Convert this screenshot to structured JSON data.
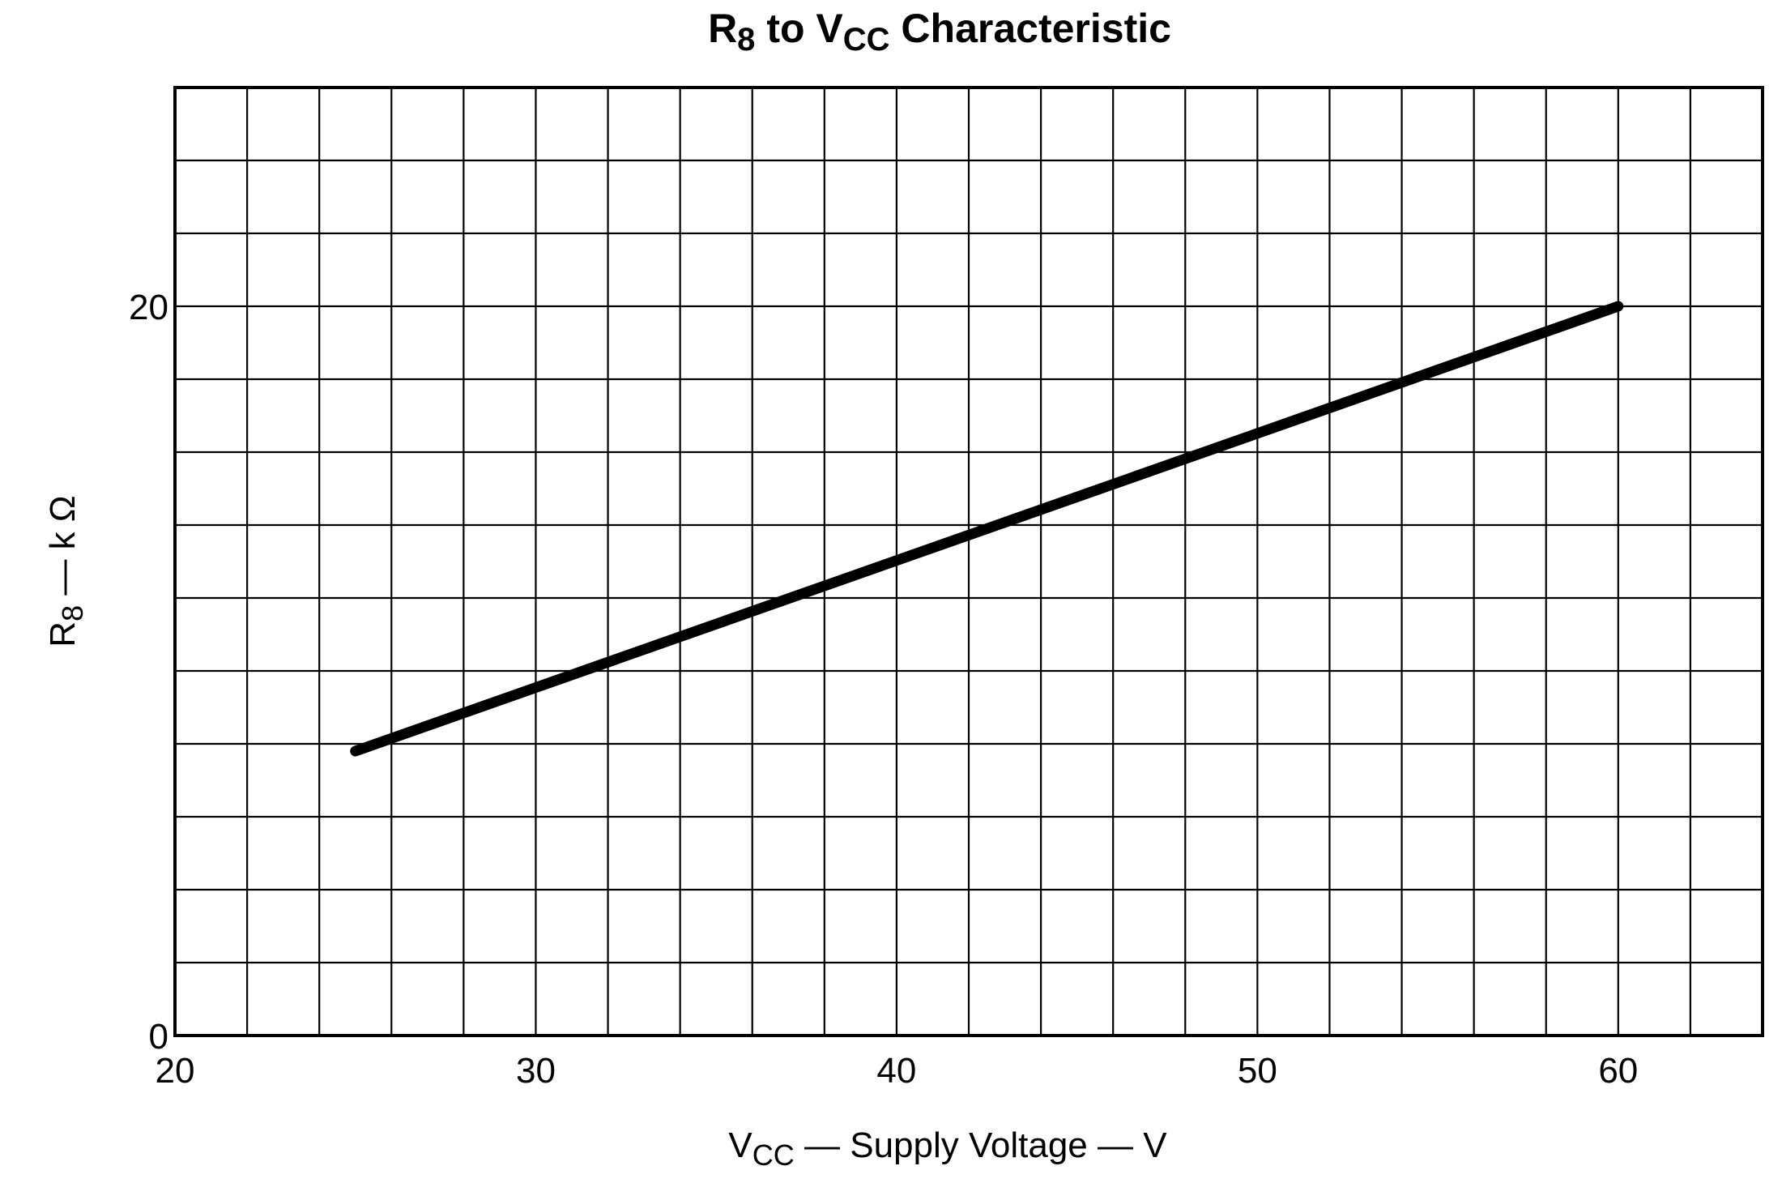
{
  "chart_data": {
    "type": "line",
    "title": {
      "pre": "R",
      "pre_sub": "8",
      "mid": " to V",
      "mid_sub": "CC",
      "post": " Characteristic"
    },
    "xlabel": {
      "pre": "V",
      "pre_sub": "CC",
      "post": " — Supply  Voltage — V"
    },
    "ylabel": {
      "pre": "R",
      "pre_sub": "8",
      "post": " — k Ω"
    },
    "xlim": [
      20,
      64
    ],
    "ylim": [
      0,
      26
    ],
    "x_ticks": [
      20,
      30,
      40,
      50,
      60
    ],
    "x_tick_labels": [
      "20",
      "30",
      "40",
      "50",
      "60"
    ],
    "y_ticks": [
      0,
      20
    ],
    "y_tick_labels": [
      "0",
      "20"
    ],
    "grid": true,
    "x_grid_step": 2,
    "y_grid_step": 2,
    "series": [
      {
        "name": "R8",
        "x": [
          25,
          60
        ],
        "y": [
          7.8,
          20
        ]
      }
    ],
    "line_color": "#000000",
    "grid_color": "#000000"
  }
}
